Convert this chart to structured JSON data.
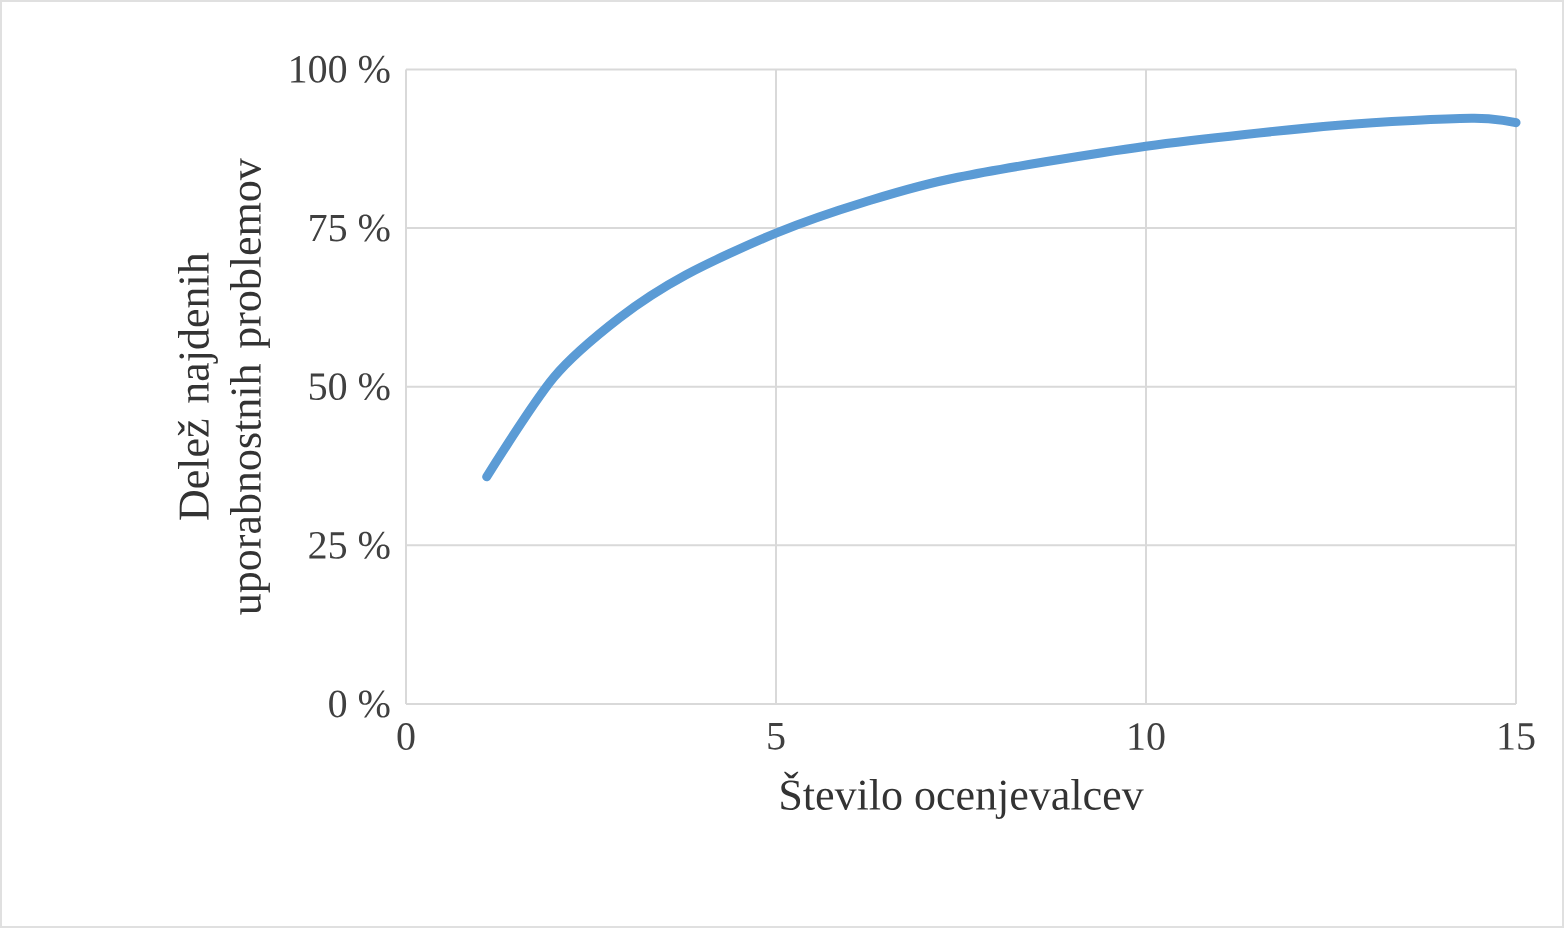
{
  "chart_data": {
    "type": "line",
    "xlabel": "Število ocenjevalcev",
    "ylabel": "Delež najdenih uporabnostnih problemov",
    "xlim": [
      0,
      15
    ],
    "ylim": [
      0,
      100
    ],
    "xticks": [
      0,
      5,
      10,
      15
    ],
    "yticks": [
      {
        "value": 0,
        "label": "0 %"
      },
      {
        "value": 25,
        "label": "25 %"
      },
      {
        "value": 50,
        "label": "50 %"
      },
      {
        "value": 75,
        "label": "75 %"
      },
      {
        "value": 100,
        "label": "100 %"
      }
    ],
    "grid": true,
    "marker": "none",
    "line_style": "solid",
    "series": [
      {
        "color": "#5b9bd5",
        "x": [
          1.09,
          2.0,
          2.88,
          3.78,
          5.0,
          6.2,
          7.46,
          10.0,
          12.6,
          14.4,
          15.0
        ],
        "values": [
          35.8,
          51.5,
          60.8,
          67.6,
          74.2,
          79.1,
          83.0,
          87.9,
          91.2,
          92.3,
          91.6
        ]
      }
    ]
  }
}
